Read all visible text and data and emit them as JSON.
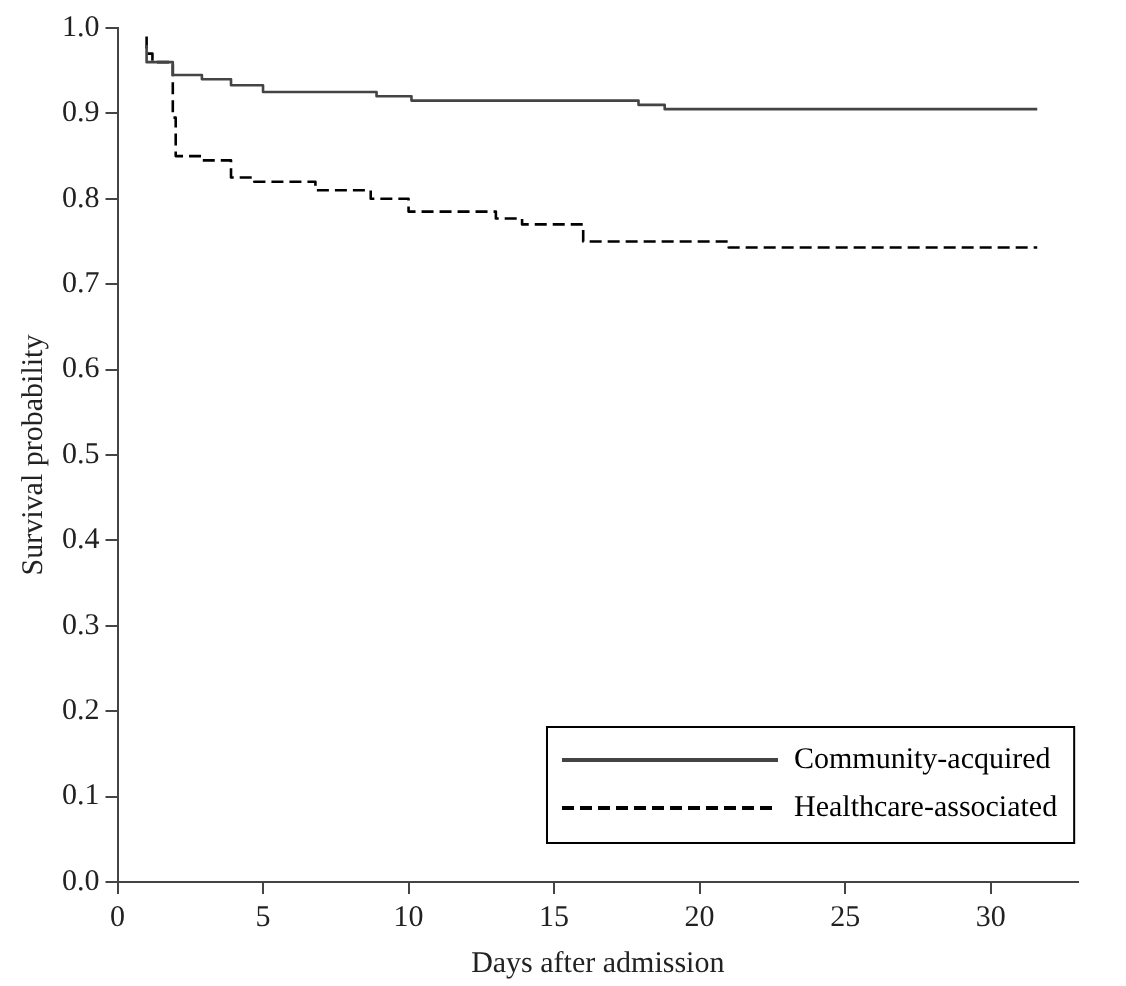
{
  "chart_data": {
    "type": "step",
    "xlabel": "Days after admission",
    "ylabel": "Survival probability",
    "xlim": [
      0,
      33
    ],
    "xticks": [
      0,
      5,
      10,
      15,
      20,
      25,
      30
    ],
    "ylim": [
      0,
      1
    ],
    "yticks": [
      {
        "value": 0,
        "label": "0.0"
      },
      0.1,
      0.2,
      0.3,
      0.4,
      0.5,
      0.6,
      0.7,
      0.8,
      0.9,
      {
        "value": 1,
        "label": "1.0"
      }
    ],
    "grid": false,
    "legend": "bottom right",
    "marker": "none",
    "series": [
      {
        "name": "Community-acquired",
        "color": "#444444",
        "line_style": "solid",
        "x": [
          1,
          1.9,
          2.9,
          3.9,
          5,
          8.9,
          10.1,
          17.9,
          18.8,
          27.8,
          31.6
        ],
        "values": [
          0.98,
          0.96,
          0.945,
          0.94,
          0.933,
          0.925,
          0.92,
          0.915,
          0.91,
          0.905,
          0.905
        ]
      },
      {
        "name": "Healthcare-associated",
        "color": "#000000",
        "line_style": "dashed",
        "x": [
          1,
          1.2,
          1.9,
          2,
          2.9,
          3.9,
          4.7,
          6.8,
          8.7,
          10,
          13,
          13.9,
          16,
          21,
          29.1,
          31.6
        ],
        "values": [
          0.99,
          0.97,
          0.96,
          0.895,
          0.85,
          0.845,
          0.825,
          0.82,
          0.81,
          0.8,
          0.785,
          0.777,
          0.77,
          0.75,
          0.743,
          0.743
        ]
      }
    ]
  }
}
